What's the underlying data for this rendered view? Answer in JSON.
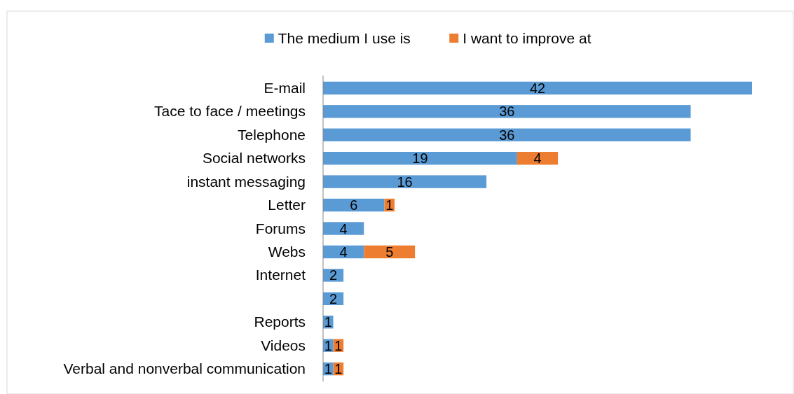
{
  "chart_data": {
    "type": "bar",
    "orientation": "horizontal",
    "stacked": true,
    "data_labels": true,
    "legend": "top",
    "categories": [
      "E-mail",
      "Tace to face / meetings",
      "Telephone",
      "Social networks",
      "instant messaging",
      "Letter",
      "Forums",
      "Webs",
      "Internet",
      null,
      "Reports",
      "Videos",
      "Verbal and nonverbal communication"
    ],
    "series": [
      {
        "name": "The medium I use is",
        "color": "#5b9bd5",
        "values": [
          42,
          36,
          36,
          19,
          16,
          6,
          4,
          4,
          2,
          2,
          1,
          1,
          1
        ]
      },
      {
        "name": "I want to improve at",
        "color": "#ed7d31",
        "values": [
          null,
          null,
          null,
          4,
          null,
          1,
          null,
          5,
          null,
          null,
          null,
          1,
          1
        ]
      }
    ]
  }
}
